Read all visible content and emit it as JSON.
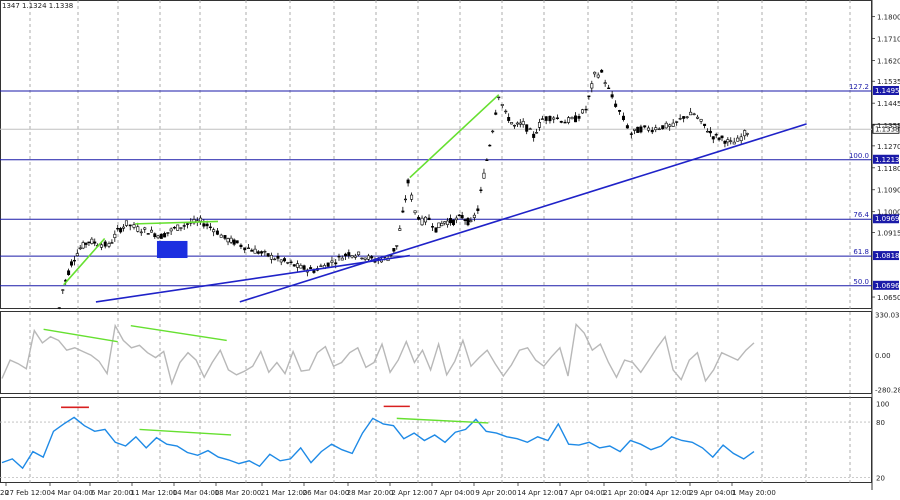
{
  "header": {
    "price_info": "1347 1.1324 1.1338"
  },
  "chart_data": {
    "type": "candlestick",
    "symbol_price_current": "1.1338",
    "price_axis": {
      "range": [
        1.0605,
        1.186
      ],
      "ticks": [
        "1.1800",
        "1.1710",
        "1.1620",
        "1.1535",
        "1.1445",
        "1.1355",
        "1.1270",
        "1.1180",
        "1.1090",
        "1.1000",
        "1.0915",
        "1.0650"
      ]
    },
    "fib_levels": [
      {
        "label": "127.2",
        "price": "1.1495",
        "value": 1.1495
      },
      {
        "label": "100.0",
        "price": "1.1213",
        "value": 1.1213
      },
      {
        "label": "76.4",
        "price": "1.0969",
        "value": 1.0969
      },
      {
        "label": "61.8",
        "price": "1.0818",
        "value": 1.0818
      },
      {
        "label": "50.0",
        "price": "1.0696",
        "value": 1.0696
      }
    ],
    "x_labels": [
      "27 Feb 12:00",
      "4 Mar 04:00",
      "6 Mar 20:00",
      "11 Mar 12:00",
      "14 Mar 04:00",
      "18 Mar 20:00",
      "21 Mar 12:00",
      "26 Mar 04:00",
      "28 Mar 20:00",
      "2 Apr 12:00",
      "7 Apr 04:00",
      "9 Apr 20:00",
      "14 Apr 12:00",
      "17 Apr 04:00",
      "21 Apr 20:00",
      "24 Apr 12:00",
      "29 Apr 04:00",
      "1 May 20:00"
    ],
    "x_label_left_partial": "20",
    "price_path": [
      [
        0.068,
        1.0605
      ],
      [
        0.072,
        1.068
      ],
      [
        0.082,
        1.079
      ],
      [
        0.092,
        1.085
      ],
      [
        0.102,
        1.088
      ],
      [
        0.112,
        1.087
      ],
      [
        0.125,
        1.086
      ],
      [
        0.135,
        1.092
      ],
      [
        0.145,
        1.095
      ],
      [
        0.158,
        1.093
      ],
      [
        0.17,
        1.092
      ],
      [
        0.185,
        1.09
      ],
      [
        0.2,
        1.093
      ],
      [
        0.215,
        1.095
      ],
      [
        0.23,
        1.096
      ],
      [
        0.245,
        1.093
      ],
      [
        0.258,
        1.089
      ],
      [
        0.272,
        1.087
      ],
      [
        0.285,
        1.085
      ],
      [
        0.3,
        1.083
      ],
      [
        0.315,
        1.081
      ],
      [
        0.33,
        1.079
      ],
      [
        0.345,
        1.077
      ],
      [
        0.36,
        1.076
      ],
      [
        0.372,
        1.078
      ],
      [
        0.385,
        1.08
      ],
      [
        0.4,
        1.083
      ],
      [
        0.415,
        1.082
      ],
      [
        0.43,
        1.08
      ],
      [
        0.445,
        1.081
      ],
      [
        0.455,
        1.086
      ],
      [
        0.462,
        1.099
      ],
      [
        0.468,
        1.112
      ],
      [
        0.476,
        1.1
      ],
      [
        0.484,
        1.096
      ],
      [
        0.492,
        1.097
      ],
      [
        0.5,
        1.093
      ],
      [
        0.51,
        1.096
      ],
      [
        0.52,
        1.096
      ],
      [
        0.53,
        1.098
      ],
      [
        0.54,
        1.095
      ],
      [
        0.548,
        1.101
      ],
      [
        0.555,
        1.115
      ],
      [
        0.565,
        1.134
      ],
      [
        0.572,
        1.148
      ],
      [
        0.58,
        1.14
      ],
      [
        0.59,
        1.135
      ],
      [
        0.6,
        1.136
      ],
      [
        0.612,
        1.131
      ],
      [
        0.622,
        1.138
      ],
      [
        0.635,
        1.139
      ],
      [
        0.648,
        1.137
      ],
      [
        0.66,
        1.138
      ],
      [
        0.672,
        1.142
      ],
      [
        0.682,
        1.156
      ],
      [
        0.69,
        1.157
      ],
      [
        0.698,
        1.15
      ],
      [
        0.706,
        1.144
      ],
      [
        0.715,
        1.138
      ],
      [
        0.724,
        1.132
      ],
      [
        0.735,
        1.134
      ],
      [
        0.748,
        1.134
      ],
      [
        0.76,
        1.135
      ],
      [
        0.772,
        1.135
      ],
      [
        0.784,
        1.139
      ],
      [
        0.796,
        1.14
      ],
      [
        0.808,
        1.135
      ],
      [
        0.818,
        1.131
      ],
      [
        0.828,
        1.13
      ],
      [
        0.838,
        1.128
      ],
      [
        0.846,
        1.129
      ],
      [
        0.854,
        1.132
      ],
      [
        0.86,
        1.1338
      ]
    ],
    "green_lines_price": [
      [
        [
          0.073,
          1.07
        ],
        [
          0.12,
          1.089
        ]
      ],
      [
        [
          0.155,
          1.095
        ],
        [
          0.25,
          1.096
        ]
      ],
      [
        [
          0.47,
          1.114
        ],
        [
          0.572,
          1.148
        ]
      ]
    ],
    "trend_lines_price": [
      [
        [
          0.11,
          1.063
        ],
        [
          0.47,
          1.082
        ]
      ],
      [
        [
          0.275,
          1.063
        ],
        [
          0.925,
          1.136
        ]
      ]
    ],
    "rect_price": {
      "x0": 0.18,
      "x1": 0.215,
      "top": 1.088,
      "bottom": 1.081
    },
    "cci": {
      "range": [
        -300,
        335
      ],
      "ticks": [
        "330.0361",
        "0.00",
        "-280.2849"
      ],
      "values": [
        -190,
        -40,
        -70,
        -110,
        200,
        100,
        150,
        120,
        40,
        60,
        30,
        0,
        -50,
        -150,
        240,
        120,
        60,
        80,
        20,
        -20,
        30,
        -230,
        -60,
        20,
        -40,
        -180,
        -60,
        40,
        -120,
        -160,
        -130,
        -90,
        30,
        -140,
        -60,
        -150,
        30,
        -130,
        -120,
        20,
        70,
        -90,
        -60,
        20,
        60,
        -100,
        -60,
        90,
        -140,
        -40,
        110,
        -60,
        40,
        -120,
        90,
        -160,
        -50,
        120,
        -90,
        -20,
        40,
        -70,
        -170,
        -80,
        40,
        60,
        -40,
        -90,
        -10,
        60,
        -170,
        250,
        180,
        40,
        90,
        -60,
        -180,
        -40,
        -60,
        -140,
        -40,
        60,
        150,
        -120,
        -200,
        -40,
        20,
        -210,
        -120,
        20,
        -10,
        -40,
        40,
        100
      ],
      "green_lines": [
        [
          [
            0.05,
            210
          ],
          [
            0.135,
            110
          ]
        ],
        [
          [
            0.15,
            240
          ],
          [
            0.26,
            120
          ]
        ]
      ]
    },
    "rsi": {
      "range": [
        15,
        105
      ],
      "ticks": [
        "100",
        "80",
        "20"
      ],
      "values": [
        36,
        40,
        30,
        48,
        42,
        70,
        78,
        85,
        76,
        70,
        72,
        58,
        54,
        64,
        52,
        63,
        56,
        54,
        47,
        44,
        49,
        42,
        39,
        35,
        38,
        32,
        45,
        38,
        40,
        52,
        36,
        48,
        56,
        50,
        46,
        68,
        84,
        78,
        76,
        62,
        68,
        60,
        66,
        58,
        69,
        72,
        83,
        70,
        68,
        64,
        62,
        58,
        64,
        60,
        78,
        56,
        55,
        58,
        52,
        54,
        48,
        60,
        56,
        50,
        54,
        64,
        60,
        58,
        52,
        42,
        55,
        46,
        40,
        48
      ],
      "green_lines": [
        [
          [
            0.16,
            72
          ],
          [
            0.265,
            66
          ]
        ],
        [
          [
            0.455,
            84
          ],
          [
            0.56,
            79
          ]
        ]
      ],
      "red_lines": [
        [
          [
            0.07,
            96
          ],
          [
            0.102,
            96
          ]
        ],
        [
          [
            0.44,
            97
          ],
          [
            0.47,
            97
          ]
        ]
      ]
    },
    "colors": {
      "candle": "#000000",
      "fib": "#1a1aa8",
      "trend": "#1f22c8",
      "rect": "#1c2fe0",
      "divergence": "#66e030",
      "cci": "#b8b8b8",
      "rsi": "#1e8ae6",
      "rsi_peak": "#d81f1f"
    }
  }
}
